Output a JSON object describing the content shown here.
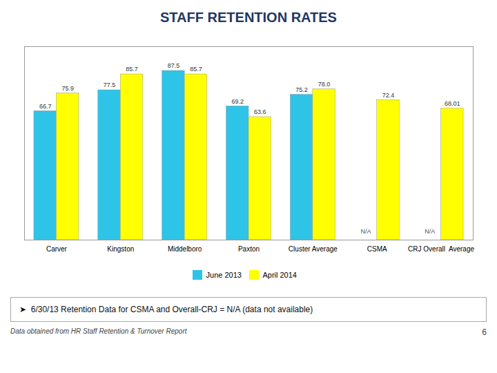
{
  "chart_data": {
    "type": "bar",
    "title": "STAFF RETENTION RATES",
    "categories": [
      "Carver",
      "Kingston",
      "Middelboro",
      "Paxton",
      "Cluster Average",
      "CSMA",
      "CRJ Overall  Average"
    ],
    "series": [
      {
        "name": "June 2013",
        "color": "#2EC4E8",
        "values": [
          66.7,
          77.5,
          87.5,
          69.2,
          75.2,
          null,
          null
        ],
        "value_labels": [
          "66.7",
          "77.5",
          "87.5",
          "69.2",
          "75.2",
          "N/A",
          "N/A"
        ]
      },
      {
        "name": "April 2014",
        "color": "#FFFF00",
        "values": [
          75.9,
          85.7,
          85.7,
          63.6,
          78.0,
          72.4,
          68.01
        ],
        "value_labels": [
          "75.9",
          "85.7",
          "85.7",
          "63.6",
          "78.0",
          "72.4",
          "68.01"
        ]
      }
    ],
    "ylim": [
      0,
      100
    ],
    "tick_labels": "x",
    "data_labels": true,
    "legend": "bottom",
    "annotations": [
      "➤  6/30/13 Retention Data for CSMA and Overall-CRJ = N/A (data not available)",
      "Data obtained from HR Staff Retention & Turnover Report",
      "6"
    ]
  }
}
